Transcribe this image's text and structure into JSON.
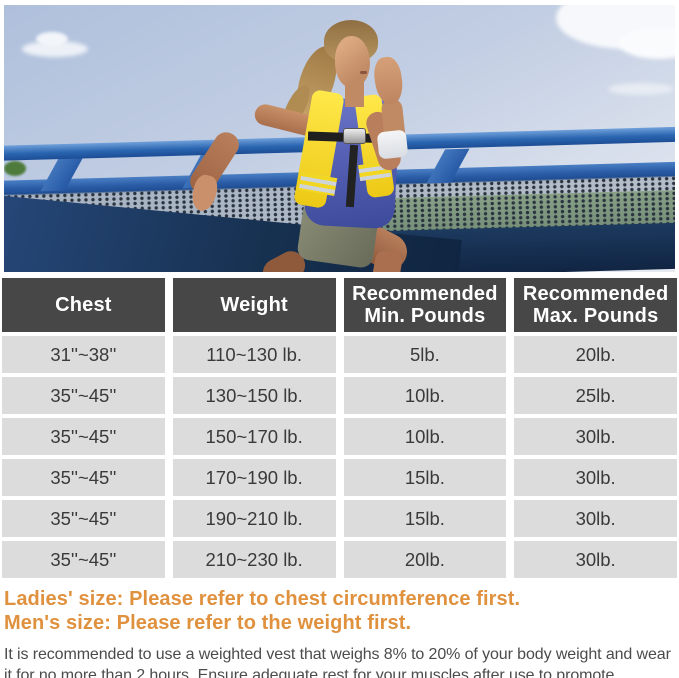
{
  "photo": {
    "description": "Woman running across a blue bridge wearing a yellow reflective weighted vest over a blue tank top",
    "colors": {
      "sky": "#bcc9e0",
      "rail_blue": "#2a65b0",
      "mesh_gray": "#96a1ac",
      "base_navy": "#16304f",
      "grass_green": "#4f7a3e",
      "vest_yellow": "#f2d722",
      "tank_blue": "#5560b4"
    }
  },
  "table": {
    "headers": [
      "Chest",
      "Weight",
      "Recommended Min. Pounds",
      "Recommended Max. Pounds"
    ],
    "rows": [
      [
        "31''~38''",
        "110~130 lb.",
        "5lb.",
        "20lb."
      ],
      [
        "35''~45''",
        "130~150 lb.",
        "10lb.",
        "25lb."
      ],
      [
        "35''~45''",
        "150~170 lb.",
        "10lb.",
        "30lb."
      ],
      [
        "35''~45''",
        "170~190 lb.",
        "15lb.",
        "30lb."
      ],
      [
        "35''~45''",
        "190~210 lb.",
        "15lb.",
        "30lb."
      ],
      [
        "35''~45''",
        "210~230 lb.",
        "20lb.",
        "30lb."
      ]
    ],
    "header_bg": "#474747",
    "row_bg": "#dcdcdc"
  },
  "notes": {
    "ladies": "Ladies' size: Please refer to chest circumference first.",
    "mens": "Men's size: Please refer to the weight first.",
    "recommendation": "It is recommended to use a weighted vest that weighs 8% to 20% of your body weight and wear it for no more than 2 hours. Ensure adequate rest for your muscles after use to promote recovery.",
    "accent_orange": "#e0913e"
  }
}
